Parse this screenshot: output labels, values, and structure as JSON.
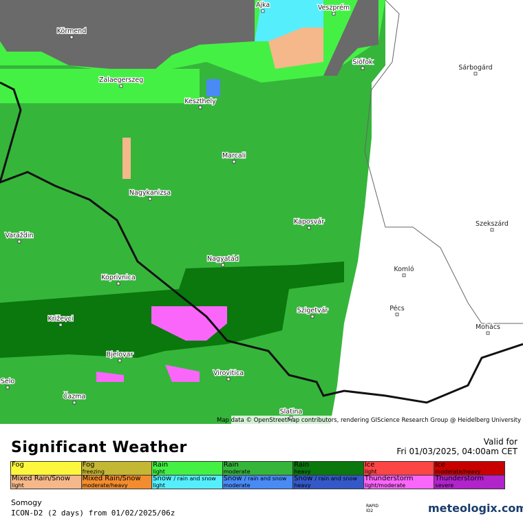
{
  "map": {
    "cities": [
      "Ajka",
      "Veszprém",
      "Körmend",
      "Sárbogárd",
      "Siófok",
      "Zalaegerszeg",
      "Keszthely",
      "Marcali",
      "Nagykanizsa",
      "Kaposvár",
      "Szekszárd",
      "Varaždin",
      "Nagyatád",
      "Komló",
      "Koprivnica",
      "Pécs",
      "Szigetvár",
      "Križevci",
      "Mohács",
      "Bjelovar",
      "Selo",
      "Virovitica",
      "Čazma",
      "Slatina"
    ],
    "attribution": "Map data © OpenStreetMap contributors, rendering GIScience Research Group @ Heidelberg University"
  },
  "legend": {
    "title": "Significant Weather",
    "valid_label": "Valid for",
    "valid_time": "Fri 01/03/2025, 04:00am CET",
    "items": [
      {
        "main": "Fog",
        "color": "#fcf73c"
      },
      {
        "main": "Fog",
        "sub": "freezing",
        "color": "#c4b733"
      },
      {
        "main": "Rain",
        "sub": "light",
        "color": "#45f045"
      },
      {
        "main": "Rain",
        "sub": "moderate",
        "color": "#36b53b"
      },
      {
        "main": "Rain",
        "sub": "heavy",
        "color": "#0a780d"
      },
      {
        "main": "Ice",
        "sub": "light",
        "color": "#fc4545"
      },
      {
        "main": "Ice",
        "sub": "moderate/heavy",
        "color": "#c90000"
      },
      {
        "main": "Mixed Rain/Snow",
        "sub": "light",
        "color": "#f5b88a"
      },
      {
        "main": "Mixed Rain/Snow",
        "sub": "moderate/heavy",
        "color": "#f28c2f"
      },
      {
        "main": "Snow",
        "note": "/ rain and snow",
        "sub": "light",
        "color": "#55eefc"
      },
      {
        "main": "Snow",
        "note": "/ rain and snow",
        "sub": "moderate",
        "color": "#4a8af5"
      },
      {
        "main": "Snow",
        "note": "/ rain and snow",
        "sub": "heavy",
        "color": "#3458c7"
      },
      {
        "main": "Thunderstorm",
        "sub": "light/moderate",
        "color": "#fa66fa"
      },
      {
        "main": "Thunderstorm",
        "sub": "severe",
        "color": "#b024c9"
      }
    ]
  },
  "footer": {
    "region": "Somogy",
    "model": "ICON-D2 (2 days) from 01/02/2025/06z",
    "badge": "RAPID ID2",
    "logo": "meteologix.com"
  }
}
